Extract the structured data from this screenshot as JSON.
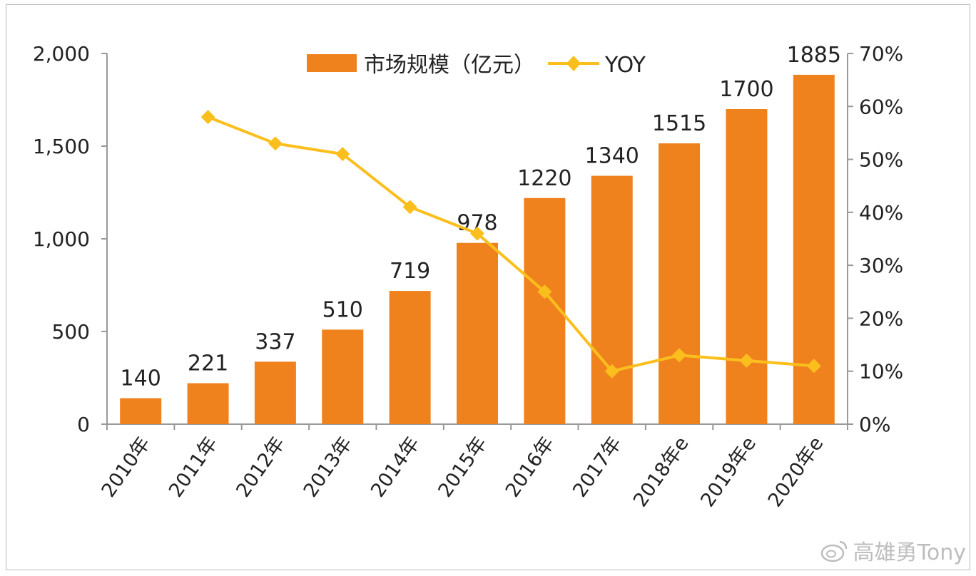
{
  "chart_data": {
    "type": "bar",
    "categories": [
      "2010年",
      "2011年",
      "2012年",
      "2013年",
      "2014年",
      "2015年",
      "2016年",
      "2017年",
      "2018年e",
      "2019年e",
      "2020年e"
    ],
    "series": [
      {
        "name": "市场规模（亿元）",
        "type": "bar",
        "axis": "left",
        "values": [
          140,
          221,
          337,
          510,
          719,
          978,
          1220,
          1340,
          1515,
          1700,
          1885
        ],
        "labels": [
          "140",
          "221",
          "337",
          "510",
          "719",
          "978",
          "1220",
          "1340",
          "1515",
          "1700",
          "1885"
        ]
      },
      {
        "name": "YOY",
        "type": "line",
        "axis": "right",
        "values": [
          null,
          0.58,
          0.53,
          0.51,
          0.41,
          0.36,
          0.25,
          0.1,
          0.13,
          0.12,
          0.11
        ]
      }
    ],
    "ylim_left": [
      0,
      2000
    ],
    "yticks_left": [
      "0",
      "500",
      "1,000",
      "1,500",
      "2,000"
    ],
    "ylim_right": [
      0,
      0.7
    ],
    "yticks_right": [
      "0%",
      "10%",
      "20%",
      "30%",
      "40%",
      "50%",
      "60%",
      "70%"
    ],
    "legend": {
      "position": "top-center",
      "bar_label": "市场规模（亿元）",
      "line_label": "YOY"
    },
    "colors": {
      "bar": "#F0821E",
      "line": "#FBBF1D",
      "axis": "#999999",
      "text": "#222222"
    },
    "grid": false
  },
  "watermark": {
    "text": "高雄勇Tony",
    "icon": "weibo-icon"
  }
}
